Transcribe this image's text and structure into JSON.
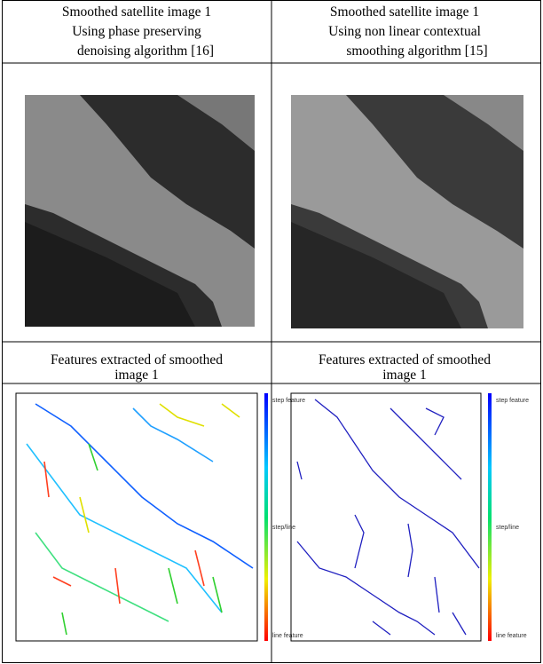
{
  "table": {
    "header": [
      {
        "lines": [
          "Smoothed satellite image 1",
          "Using phase preserving",
          "denoising algorithm [16]"
        ]
      },
      {
        "lines": [
          "Smoothed satellite image 1",
          "Using non linear contextual",
          "smoothing algorithm  [15]"
        ]
      }
    ],
    "caption": [
      {
        "lines": [
          "Features extracted of smoothed",
          "image 1"
        ]
      },
      {
        "lines": [
          "Features extracted of smoothed",
          "image 1"
        ]
      }
    ]
  },
  "feature_plots": [
    {
      "colorbar_labels": [
        "step feature",
        "step/line",
        "line feature"
      ]
    },
    {
      "colorbar_labels": [
        "step feature",
        "step/line",
        "line feature"
      ]
    }
  ]
}
